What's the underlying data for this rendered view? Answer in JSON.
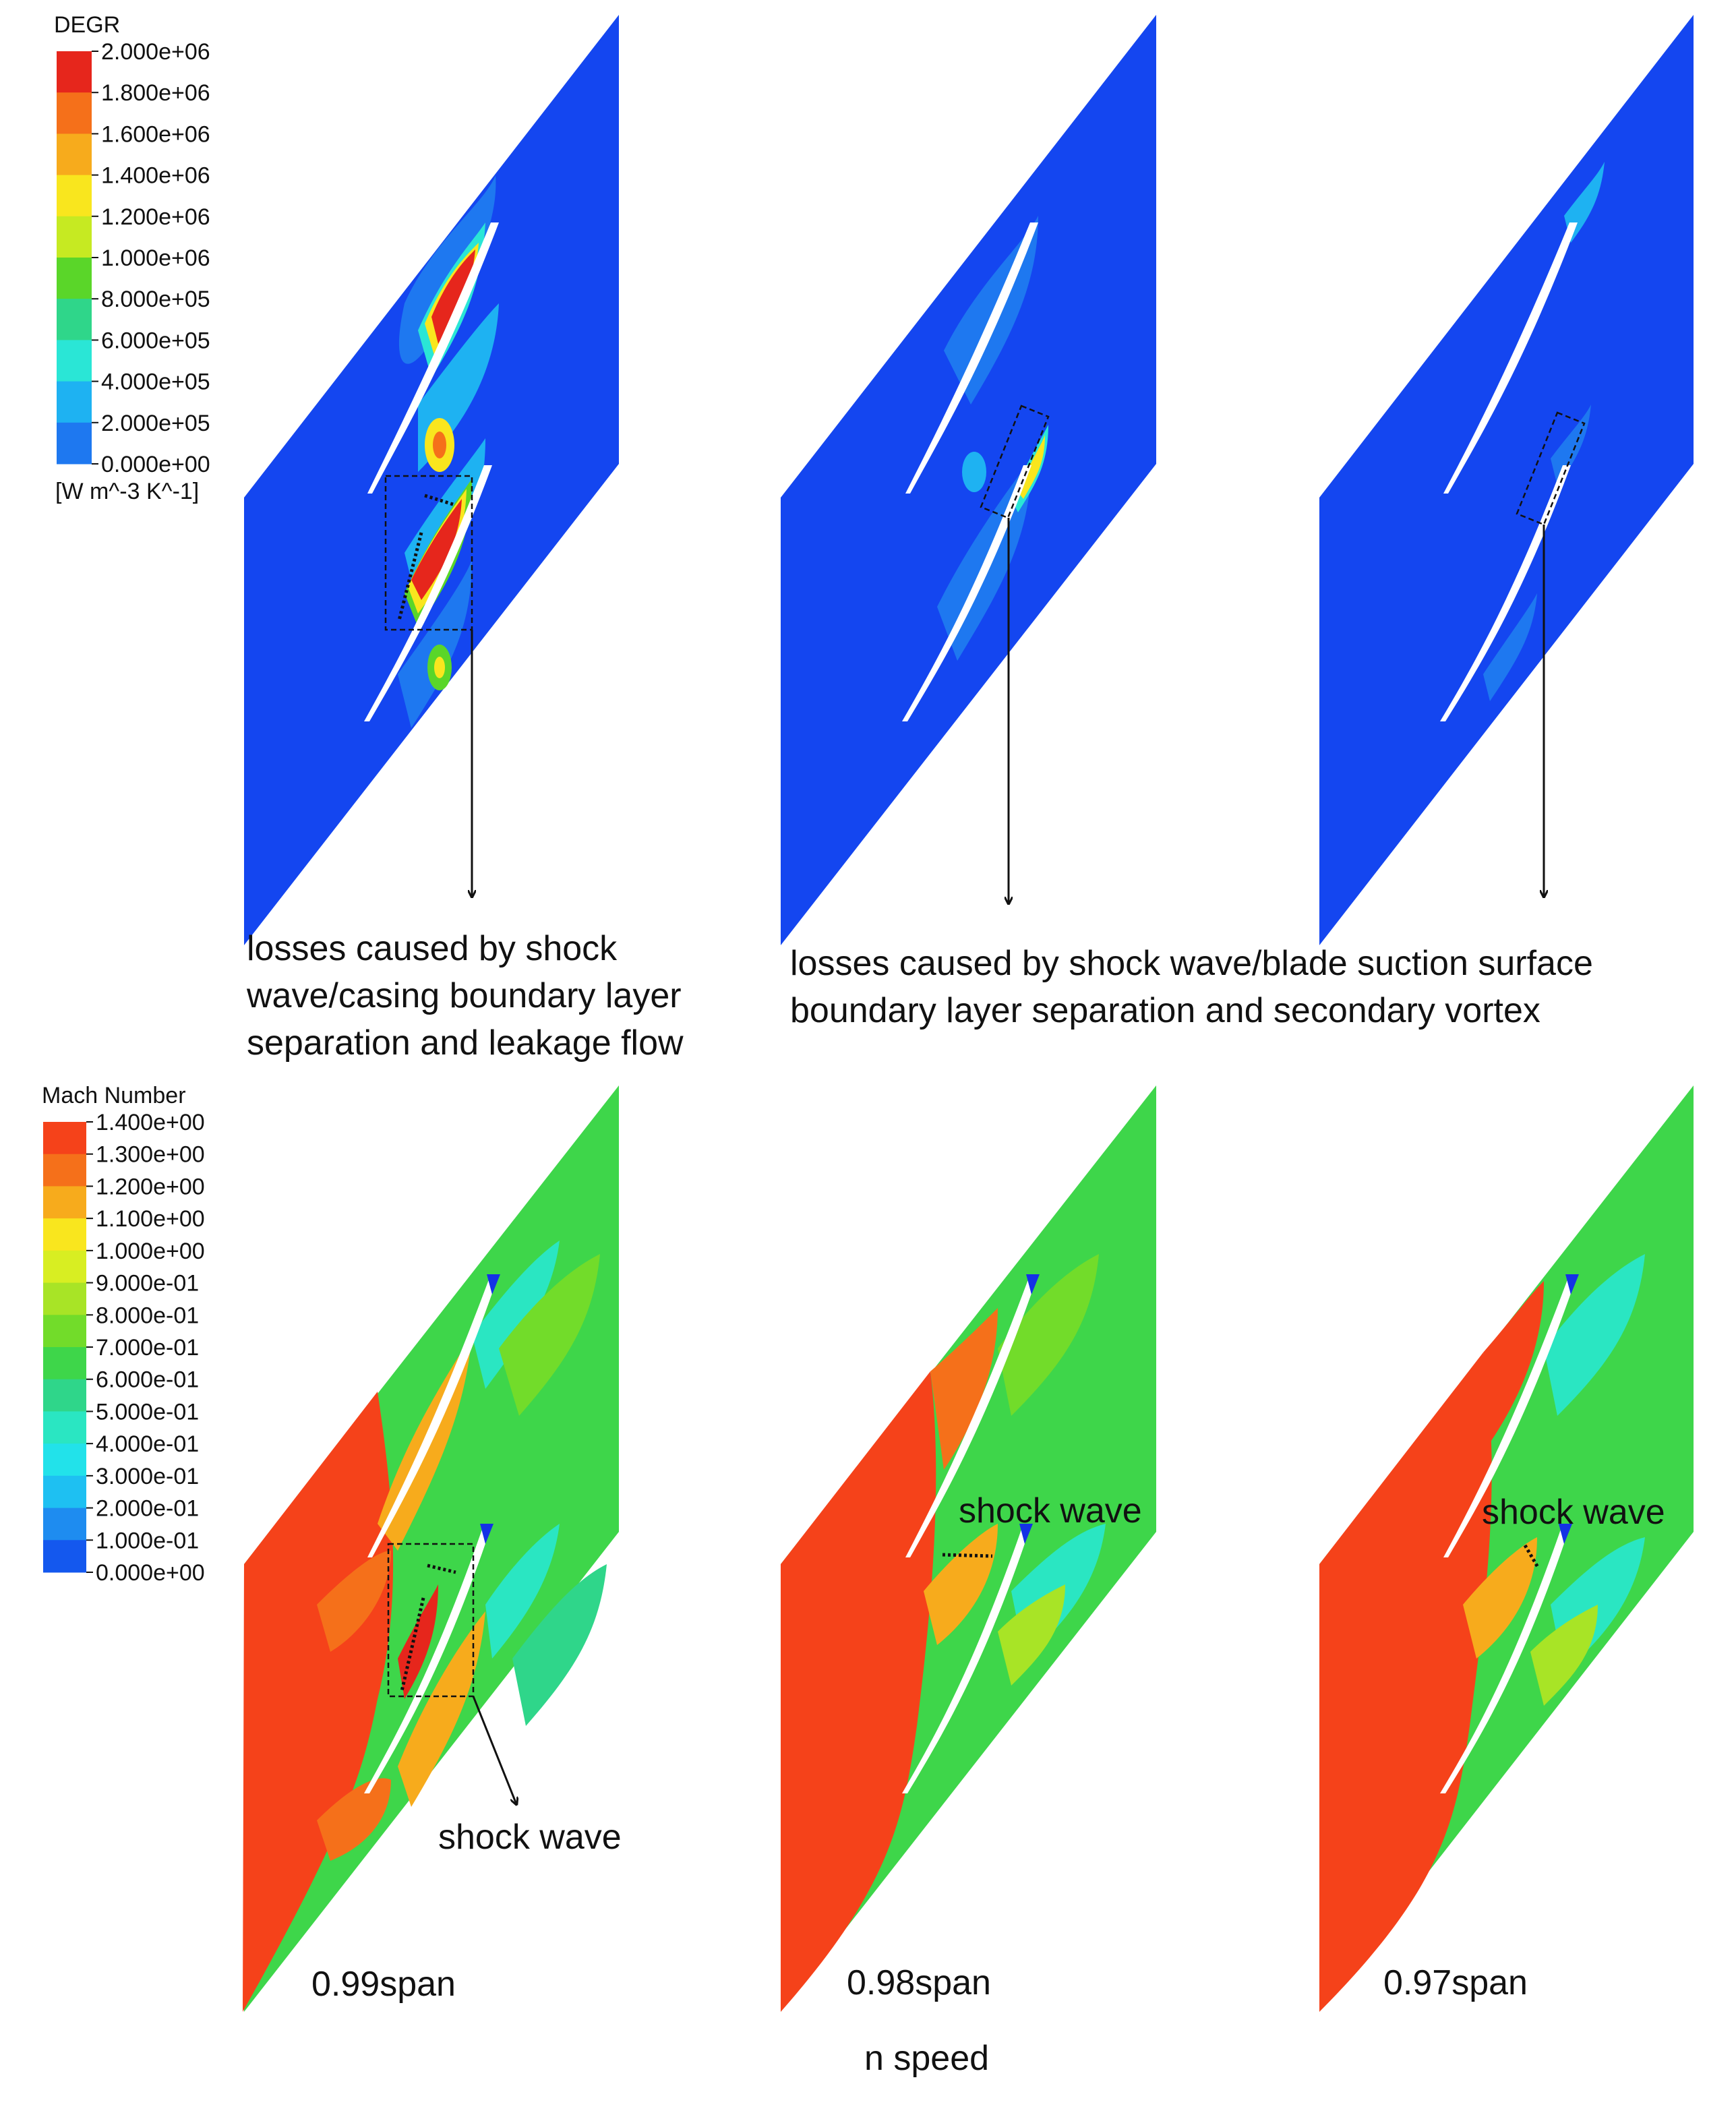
{
  "degr_legend": {
    "title": "DEGR",
    "unit": "[W m^-3 K^-1]",
    "ticks": [
      "2.000e+06",
      "1.800e+06",
      "1.600e+06",
      "1.400e+06",
      "1.200e+06",
      "1.000e+06",
      "8.000e+05",
      "6.000e+05",
      "4.000e+05",
      "2.000e+05",
      "0.000e+00"
    ],
    "colors": [
      "#e6261c",
      "#f5701a",
      "#f7ab1c",
      "#f9e61e",
      "#c6ea22",
      "#5ad629",
      "#2fd68a",
      "#2ae6d6",
      "#1eb2f2",
      "#1e78f0",
      "#1446f0"
    ]
  },
  "mach_legend": {
    "title": "Mach Number",
    "ticks": [
      "1.400e+00",
      "1.300e+00",
      "1.200e+00",
      "1.100e+00",
      "1.000e+00",
      "9.000e-01",
      "8.000e-01",
      "7.000e-01",
      "6.000e-01",
      "5.000e-01",
      "4.000e-01",
      "3.000e-01",
      "2.000e-01",
      "1.000e-01",
      "0.000e+00"
    ],
    "colors": [
      "#f5421a",
      "#f5701a",
      "#f7ab1c",
      "#f9e61e",
      "#d8ee22",
      "#a8e426",
      "#72dc2a",
      "#3ed64a",
      "#2fd68a",
      "#2ae6c2",
      "#22e2ea",
      "#1ec0f2",
      "#1e8cf0",
      "#1458ee",
      "#1432e6"
    ]
  },
  "annotations": {
    "loss_left": [
      "losses caused by shock",
      "wave/casing boundary layer",
      "separation and leakage flow"
    ],
    "loss_right": [
      "losses caused by shock wave/blade suction surface",
      "boundary layer separation and secondary vortex"
    ],
    "shock_wave": "shock wave"
  },
  "spans": [
    "0.99span",
    "0.98span",
    "0.97span"
  ],
  "footer": "n speed"
}
